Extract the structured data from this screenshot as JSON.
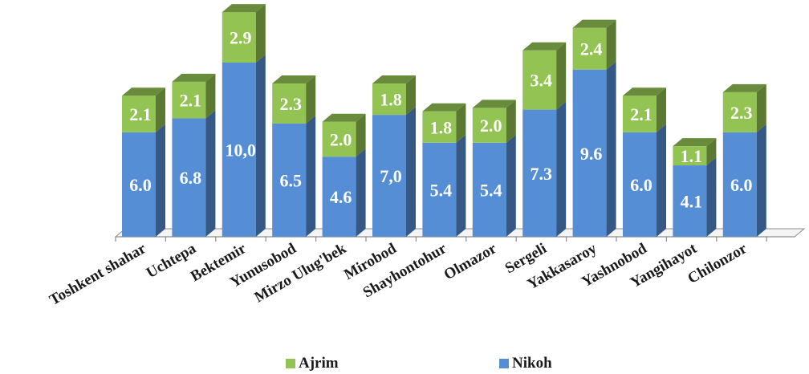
{
  "chart_data": {
    "type": "bar",
    "stacked": true,
    "style": "3d",
    "categories": [
      "Toshkent shahar",
      "Uchtepa",
      "Bektemir",
      "Yunusobod",
      "Mirzo Ulug'bek",
      "Mirobod",
      "Shayhontohur",
      "Olmazor",
      "Sergeli",
      "Yakkasaroy",
      "Yashnobod",
      "Yangihayot",
      "Chilonzor"
    ],
    "series": [
      {
        "name": "Nikoh",
        "color": "#558ed5",
        "values": [
          6.0,
          6.8,
          10.0,
          6.5,
          4.6,
          7.0,
          5.4,
          5.4,
          7.3,
          9.6,
          6.0,
          4.1,
          6.0
        ],
        "labels": [
          "6.0",
          "6.8",
          "10,0",
          "6.5",
          "4.6",
          "7,0",
          "5.4",
          "5.4",
          "7.3",
          "9.6",
          "6.0",
          "4.1",
          "6.0"
        ]
      },
      {
        "name": "Ajrim",
        "color": "#92c353",
        "values": [
          2.1,
          2.1,
          2.9,
          2.3,
          2.0,
          1.8,
          1.8,
          2.0,
          3.4,
          2.4,
          2.1,
          1.1,
          2.3
        ],
        "labels": [
          "2.1",
          "2.1",
          "2.9",
          "2.3",
          "2.0",
          "1.8",
          "1.8",
          "2.0",
          "3.4",
          "2.4",
          "2.1",
          "1.1",
          "2.3"
        ]
      }
    ],
    "legend_position": "bottom",
    "grid": false
  }
}
